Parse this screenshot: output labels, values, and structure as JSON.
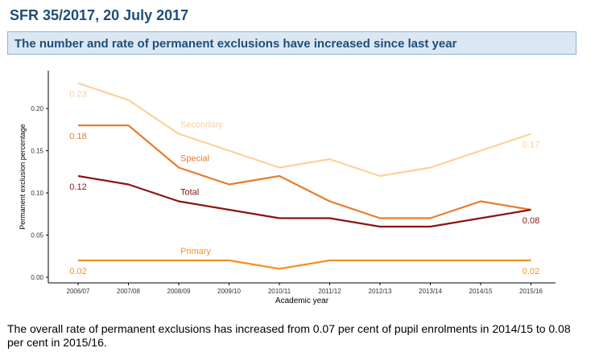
{
  "header": {
    "sfr_title": "SFR 35/2017, 20 July 2017",
    "headline": "The number and rate of permanent exclusions have increased since last year"
  },
  "caption": "The overall rate of permanent exclusions has increased from 0.07 per cent of pupil enrolments in 2014/15 to 0.08 per cent in 2015/16.",
  "chart_data": {
    "type": "line",
    "title": "",
    "xlabel": "Academic year",
    "ylabel": "Permanent exclusion percentage",
    "ylim": [
      0,
      0.25
    ],
    "yticks": [
      "0.00",
      "0.05",
      "0.10",
      "0.15",
      "0.20"
    ],
    "grid": false,
    "categories": [
      "2006/07",
      "2007/08",
      "2008/09",
      "2009/10",
      "2010/11",
      "2011/12",
      "2012/13",
      "2013/14",
      "2014/15",
      "2015/16"
    ],
    "series": [
      {
        "name": "Secondary",
        "color": "#fdd09a",
        "values": [
          0.23,
          0.21,
          0.17,
          0.15,
          0.13,
          0.14,
          0.12,
          0.13,
          0.15,
          0.17
        ],
        "start_label": "0.23",
        "end_label": "0.17"
      },
      {
        "name": "Special",
        "color": "#e87c2c",
        "values": [
          0.18,
          0.18,
          0.13,
          0.11,
          0.12,
          0.09,
          0.07,
          0.07,
          0.09,
          0.08
        ],
        "start_label": "0.18",
        "end_label": ""
      },
      {
        "name": "Total",
        "color": "#8b1414",
        "values": [
          0.12,
          0.11,
          0.09,
          0.08,
          0.07,
          0.07,
          0.06,
          0.06,
          0.07,
          0.08
        ],
        "start_label": "0.12",
        "end_label": "0.08"
      },
      {
        "name": "Primary",
        "color": "#f29222",
        "values": [
          0.02,
          0.02,
          0.02,
          0.02,
          0.01,
          0.02,
          0.02,
          0.02,
          0.02,
          0.02
        ],
        "start_label": "0.02",
        "end_label": "0.02"
      }
    ]
  }
}
